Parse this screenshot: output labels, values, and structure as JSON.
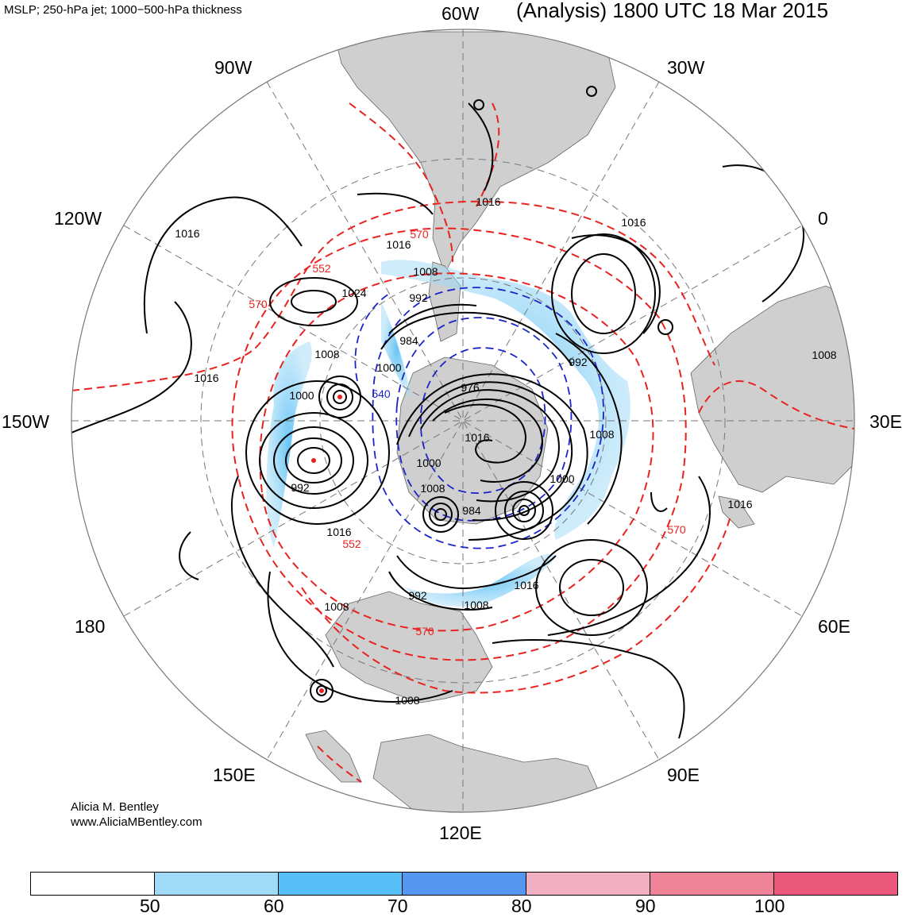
{
  "header": {
    "fields_title": "MSLP; 250-hPa jet; 1000−500-hPa thickness",
    "analysis_title": "(Analysis) 1800 UTC 18 Mar 2015"
  },
  "longitude_labels": [
    "60W",
    "30W",
    "0",
    "30E",
    "60E",
    "90E",
    "120E",
    "150E",
    "180",
    "150W",
    "120W",
    "90W"
  ],
  "isobar_labels": {
    "mslp": [
      "1016",
      "1016",
      "1016",
      "1016",
      "1008",
      "1024",
      "992",
      "984",
      "1008",
      "1000",
      "976",
      "992",
      "1008",
      "1016",
      "1000",
      "1016",
      "1000",
      "1008",
      "1000",
      "992",
      "1008",
      "1016",
      "984",
      "1016",
      "992",
      "1008",
      "1016",
      "1008",
      "1008"
    ],
    "thickness_red": [
      "570",
      "552",
      "570",
      "552",
      "570",
      "570"
    ],
    "thickness_blue": [
      "540"
    ]
  },
  "credits": {
    "author": "Alicia M. Bentley",
    "website": "www.AliciaMBentley.com"
  },
  "colorbar": {
    "segment_colors": [
      "#ffffff",
      "#9fdaf7",
      "#56bef4",
      "#5496f0",
      "#f1b0c2",
      "#ef8498",
      "#e9587a"
    ],
    "tick_labels": [
      "50",
      "60",
      "70",
      "80",
      "90",
      "100"
    ]
  },
  "colors": {
    "land": "#cfcfcf",
    "mslp_contour": "#000000",
    "thickness_warm": "#e8231f",
    "thickness_cold": "#1b24c8",
    "grid": "#777777"
  }
}
